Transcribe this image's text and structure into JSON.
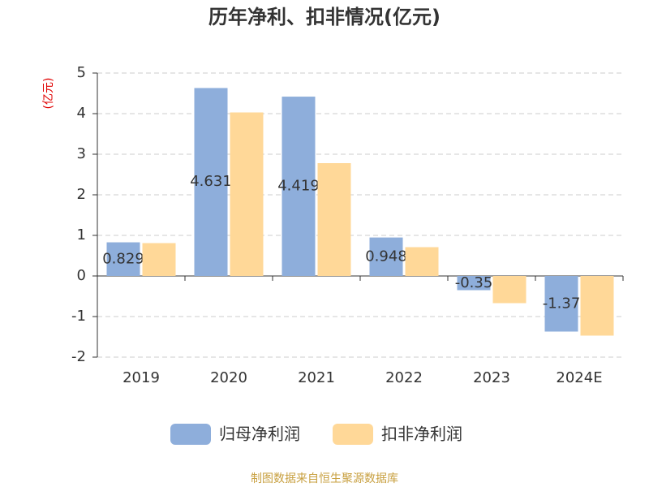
{
  "chart_data": {
    "type": "bar",
    "title": "历年净利、扣非情况(亿元)",
    "y_label": "(亿元)",
    "categories": [
      "2019",
      "2020",
      "2021",
      "2022",
      "2023",
      "2024E"
    ],
    "series": [
      {
        "name": "归母净利润",
        "color": "#8eaedb",
        "values": [
          0.829,
          4.631,
          4.419,
          0.948,
          -0.35,
          -1.37
        ],
        "show_labels": true
      },
      {
        "name": "扣非净利润",
        "color": "#ffd898",
        "values": [
          0.81,
          4.03,
          2.78,
          0.71,
          -0.67,
          -1.47
        ],
        "show_labels": false
      }
    ],
    "ylim": [
      -2,
      5
    ],
    "yticks": [
      -2,
      -1,
      0,
      1,
      2,
      3,
      4,
      5
    ],
    "grid": true,
    "source": "制图数据来自恒生聚源数据库"
  }
}
